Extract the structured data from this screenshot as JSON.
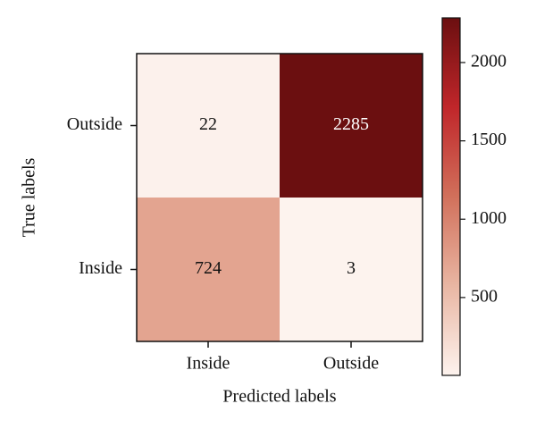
{
  "chart_data": {
    "type": "heatmap",
    "x_categories": [
      "Inside",
      "Outside"
    ],
    "y_categories": [
      "Outside",
      "Inside"
    ],
    "values": [
      [
        22,
        2285
      ],
      [
        724,
        3
      ]
    ],
    "xlabel": "Predicted labels",
    "ylabel": "True labels",
    "clim": [
      3,
      2285
    ],
    "cticks": [
      500,
      1000,
      1500,
      2000
    ],
    "colormap": [
      "#fdf3ee",
      "#e9b6a3",
      "#d1705b",
      "#c0262a",
      "#6b0f10"
    ]
  }
}
